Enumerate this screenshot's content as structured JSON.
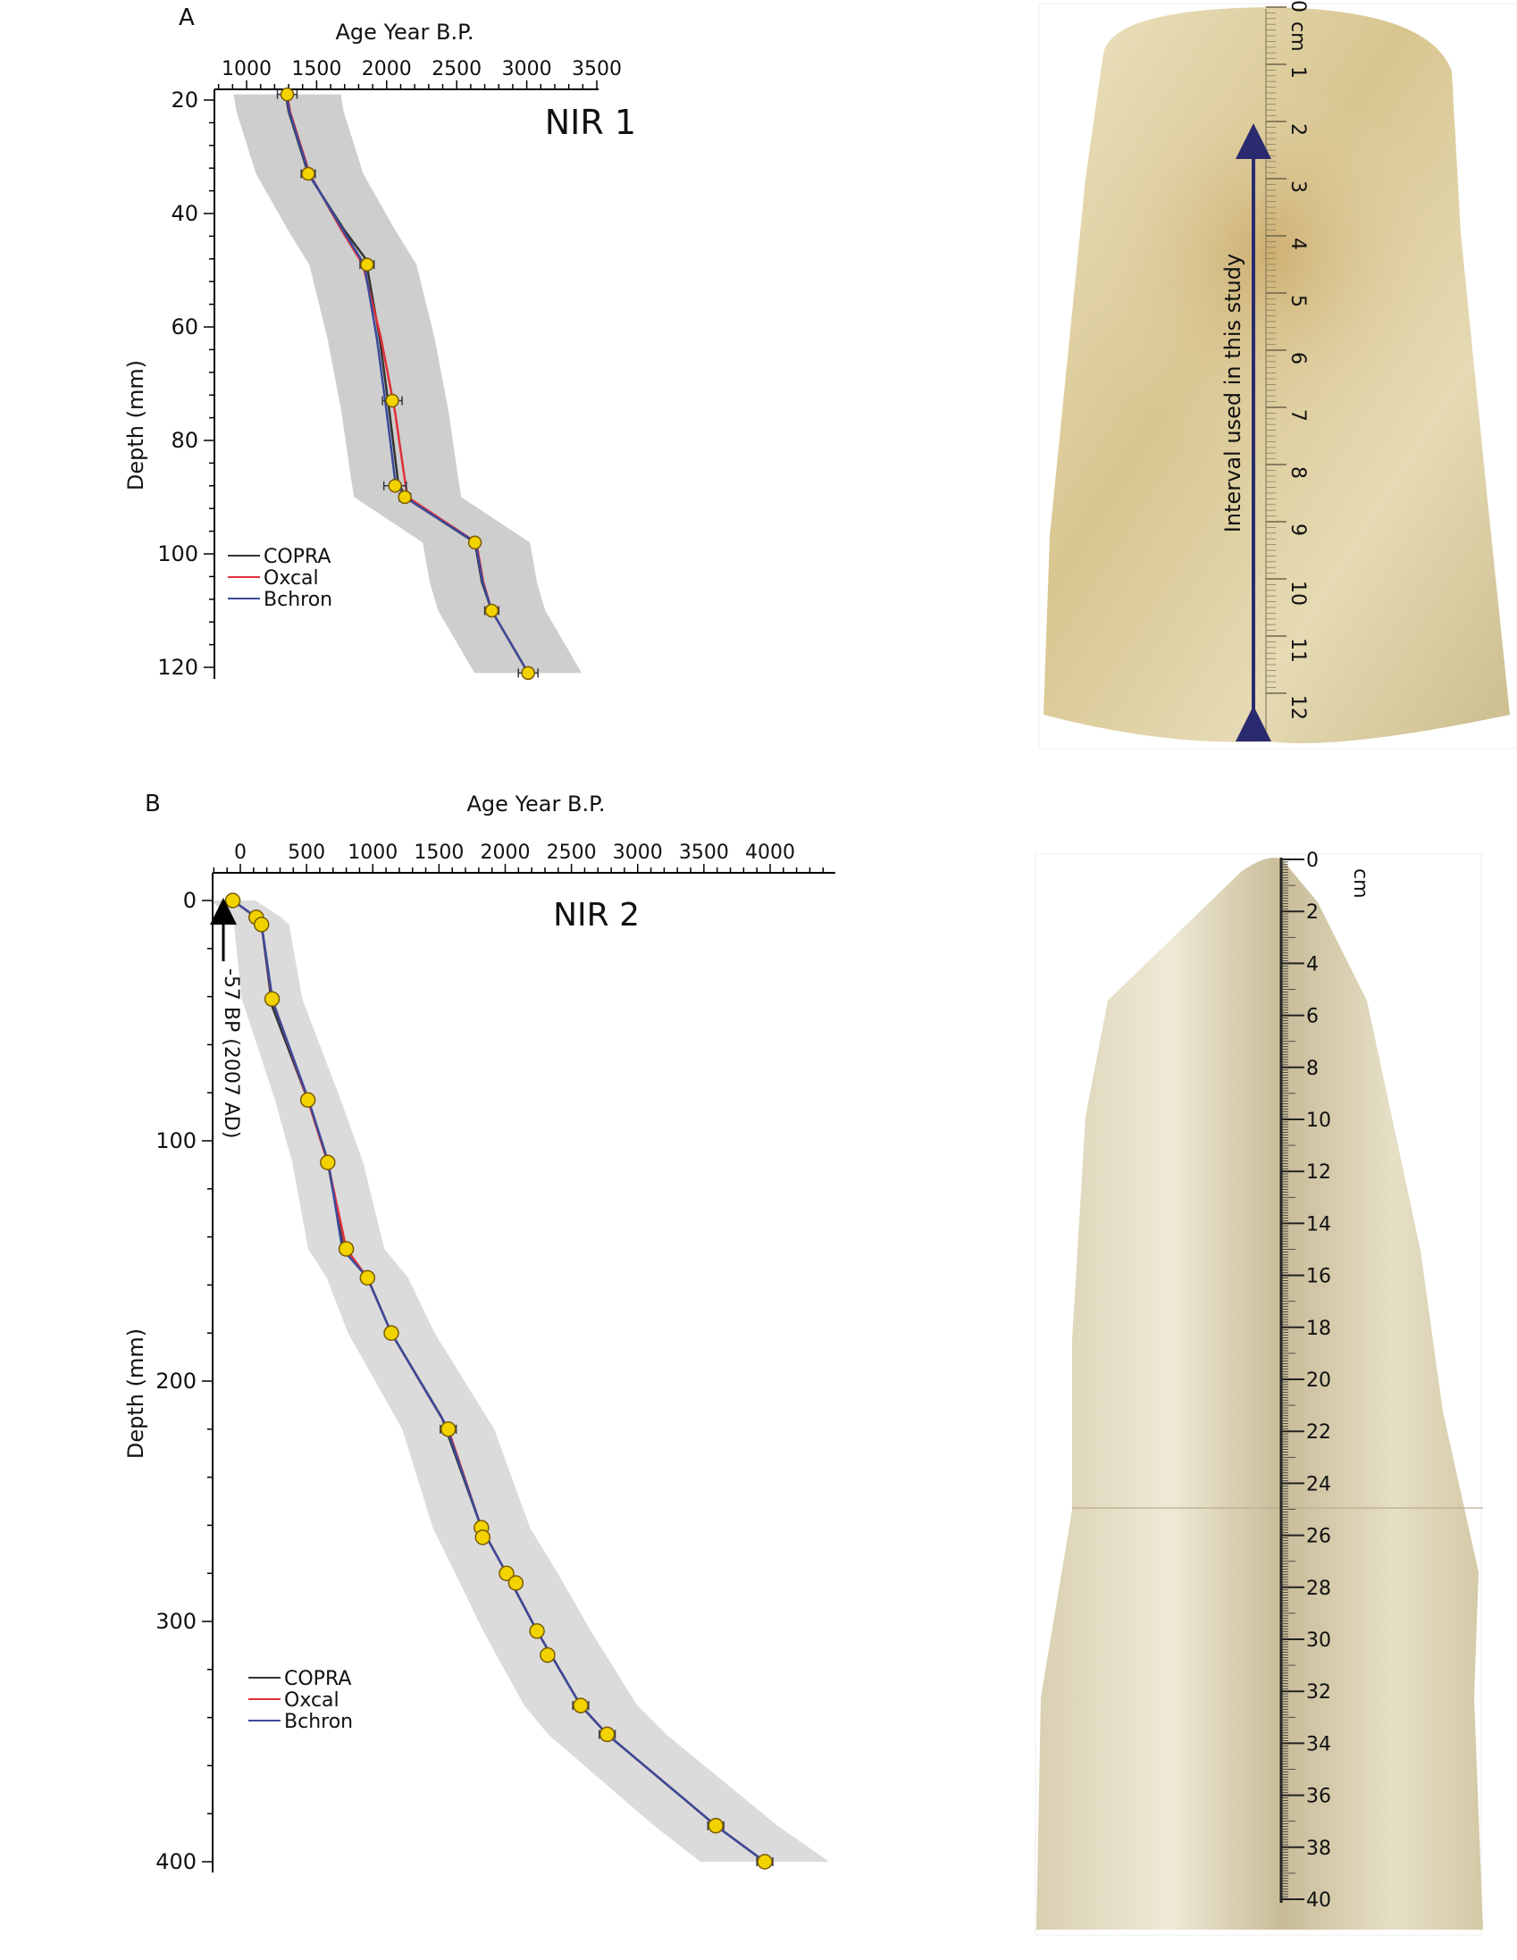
{
  "chart_data": [
    {
      "type": "line",
      "panel_label": "A",
      "title": "NIR 1",
      "xlabel": "Age Year B.P.",
      "ylabel": "Depth (mm)",
      "xlim": [
        760,
        3500
      ],
      "ylim": [
        18,
        122
      ],
      "x_ticks": [
        1000,
        1500,
        2000,
        2500,
        3000,
        3500
      ],
      "y_ticks": [
        20,
        40,
        60,
        80,
        100,
        120
      ],
      "legend": [
        "COPRA",
        "Oxcal",
        "Bchron"
      ],
      "legend_position": "bottom-left",
      "series_colors": {
        "COPRA": "#333333",
        "Oxcal": "#e0303a",
        "Bchron": "#3a4a9a",
        "uncertainty": "#bdbdbd",
        "dates": "#f2d300"
      },
      "dates": [
        {
          "age": 1290,
          "depth": 19,
          "err": 70
        },
        {
          "age": 1440,
          "depth": 33,
          "err": 50
        },
        {
          "age": 1860,
          "depth": 49,
          "err": 50
        },
        {
          "age": 2040,
          "depth": 73,
          "err": 70
        },
        {
          "age": 2060,
          "depth": 88,
          "err": 80
        },
        {
          "age": 2130,
          "depth": 90,
          "err": 40
        },
        {
          "age": 2630,
          "depth": 98,
          "err": 30
        },
        {
          "age": 2750,
          "depth": 110,
          "err": 50
        },
        {
          "age": 3010,
          "depth": 121,
          "err": 70
        }
      ],
      "series": [
        {
          "name": "COPRA",
          "x": [
            1280,
            1300,
            1440,
            1700,
            1850,
            1950,
            2020,
            2080,
            2130,
            2630,
            2680,
            2750,
            3010
          ],
          "y": [
            19,
            22,
            33,
            43,
            48,
            62,
            75,
            87,
            90,
            98,
            105,
            110,
            121
          ]
        },
        {
          "name": "Oxcal",
          "x": [
            1290,
            1310,
            1450,
            1680,
            1830,
            1960,
            2060,
            2130,
            2150,
            2640,
            2690,
            2750,
            3010
          ],
          "y": [
            19,
            22,
            33,
            43,
            49,
            62,
            75,
            87,
            90,
            98,
            105,
            110,
            121
          ]
        },
        {
          "name": "Bchron",
          "x": [
            1285,
            1305,
            1445,
            1690,
            1840,
            1930,
            2000,
            2060,
            2130,
            2635,
            2685,
            2750,
            3010
          ],
          "y": [
            19,
            22,
            33,
            43,
            49,
            62,
            75,
            87,
            90,
            98,
            105,
            110,
            121
          ]
        }
      ]
    },
    {
      "type": "line",
      "panel_label": "B",
      "title": "NIR 2",
      "xlabel": "Age Year B.P.",
      "ylabel": "Depth (mm)",
      "xlim": [
        -220,
        4450
      ],
      "ylim": [
        -5,
        405
      ],
      "x_ticks": [
        0,
        500,
        1000,
        1500,
        2000,
        2500,
        3000,
        3500,
        4000
      ],
      "y_ticks": [
        0,
        100,
        200,
        300,
        400
      ],
      "legend": [
        "COPRA",
        "Oxcal",
        "Bchron"
      ],
      "legend_position": "bottom-left",
      "annotation": "-57 BP (2007 AD)",
      "series_colors": {
        "COPRA": "#333333",
        "Oxcal": "#e0303a",
        "Bchron": "#3a4a9a",
        "uncertainty": "#cfcfcf",
        "dates": "#f2d300"
      },
      "dates": [
        {
          "age": -57,
          "depth": 0,
          "err": 0
        },
        {
          "age": 120,
          "depth": 7,
          "err": 20
        },
        {
          "age": 160,
          "depth": 10,
          "err": 20
        },
        {
          "age": 240,
          "depth": 41,
          "err": 20
        },
        {
          "age": 510,
          "depth": 83,
          "err": 15
        },
        {
          "age": 660,
          "depth": 109,
          "err": 15
        },
        {
          "age": 800,
          "depth": 145,
          "err": 40
        },
        {
          "age": 960,
          "depth": 157,
          "err": 20
        },
        {
          "age": 1140,
          "depth": 180,
          "err": 40
        },
        {
          "age": 1570,
          "depth": 220,
          "err": 60
        },
        {
          "age": 1820,
          "depth": 261,
          "err": 30
        },
        {
          "age": 1830,
          "depth": 265,
          "err": 30
        },
        {
          "age": 2010,
          "depth": 280,
          "err": 40
        },
        {
          "age": 2080,
          "depth": 284,
          "err": 40
        },
        {
          "age": 2240,
          "depth": 304,
          "err": 40
        },
        {
          "age": 2320,
          "depth": 314,
          "err": 40
        },
        {
          "age": 2570,
          "depth": 335,
          "err": 60
        },
        {
          "age": 2770,
          "depth": 347,
          "err": 60
        },
        {
          "age": 3590,
          "depth": 385,
          "err": 60
        },
        {
          "age": 3960,
          "depth": 400,
          "err": 60
        }
      ],
      "series": [
        {
          "name": "COPRA",
          "x": [
            -57,
            120,
            160,
            240,
            510,
            660,
            780,
            960,
            1140,
            1520,
            1820,
            2010,
            2240,
            2570,
            2770,
            3590,
            3960
          ],
          "y": [
            0,
            7,
            10,
            44,
            83,
            109,
            145,
            157,
            180,
            215,
            261,
            280,
            304,
            335,
            347,
            385,
            400
          ]
        },
        {
          "name": "Oxcal",
          "x": [
            -57,
            120,
            160,
            240,
            510,
            660,
            800,
            960,
            1140,
            1570,
            1820,
            2010,
            2240,
            2570,
            2770,
            3590,
            3960
          ],
          "y": [
            0,
            7,
            10,
            41,
            83,
            109,
            145,
            157,
            180,
            220,
            261,
            280,
            304,
            335,
            347,
            385,
            400
          ]
        },
        {
          "name": "Bchron",
          "x": [
            -57,
            120,
            160,
            245,
            515,
            665,
            770,
            960,
            1140,
            1550,
            1820,
            2010,
            2240,
            2570,
            2770,
            3590,
            3960
          ],
          "y": [
            0,
            7,
            10,
            42,
            83,
            109,
            145,
            157,
            180,
            218,
            261,
            280,
            304,
            335,
            347,
            385,
            400
          ]
        }
      ]
    }
  ],
  "photos": {
    "a": {
      "unit": "cm",
      "ruler_labels": [
        "0",
        "1",
        "2",
        "3",
        "4",
        "5",
        "6",
        "7",
        "8",
        "9",
        "10",
        "11",
        "12"
      ],
      "interval_label": "Interval used in this study",
      "arrow_color": "#2a2a6e"
    },
    "b": {
      "unit": "cm",
      "ruler_labels": [
        "0",
        "2",
        "4",
        "6",
        "8",
        "10",
        "12",
        "14",
        "16",
        "18",
        "20",
        "22",
        "24",
        "26",
        "28",
        "30",
        "32",
        "34",
        "36",
        "38",
        "40"
      ]
    }
  }
}
